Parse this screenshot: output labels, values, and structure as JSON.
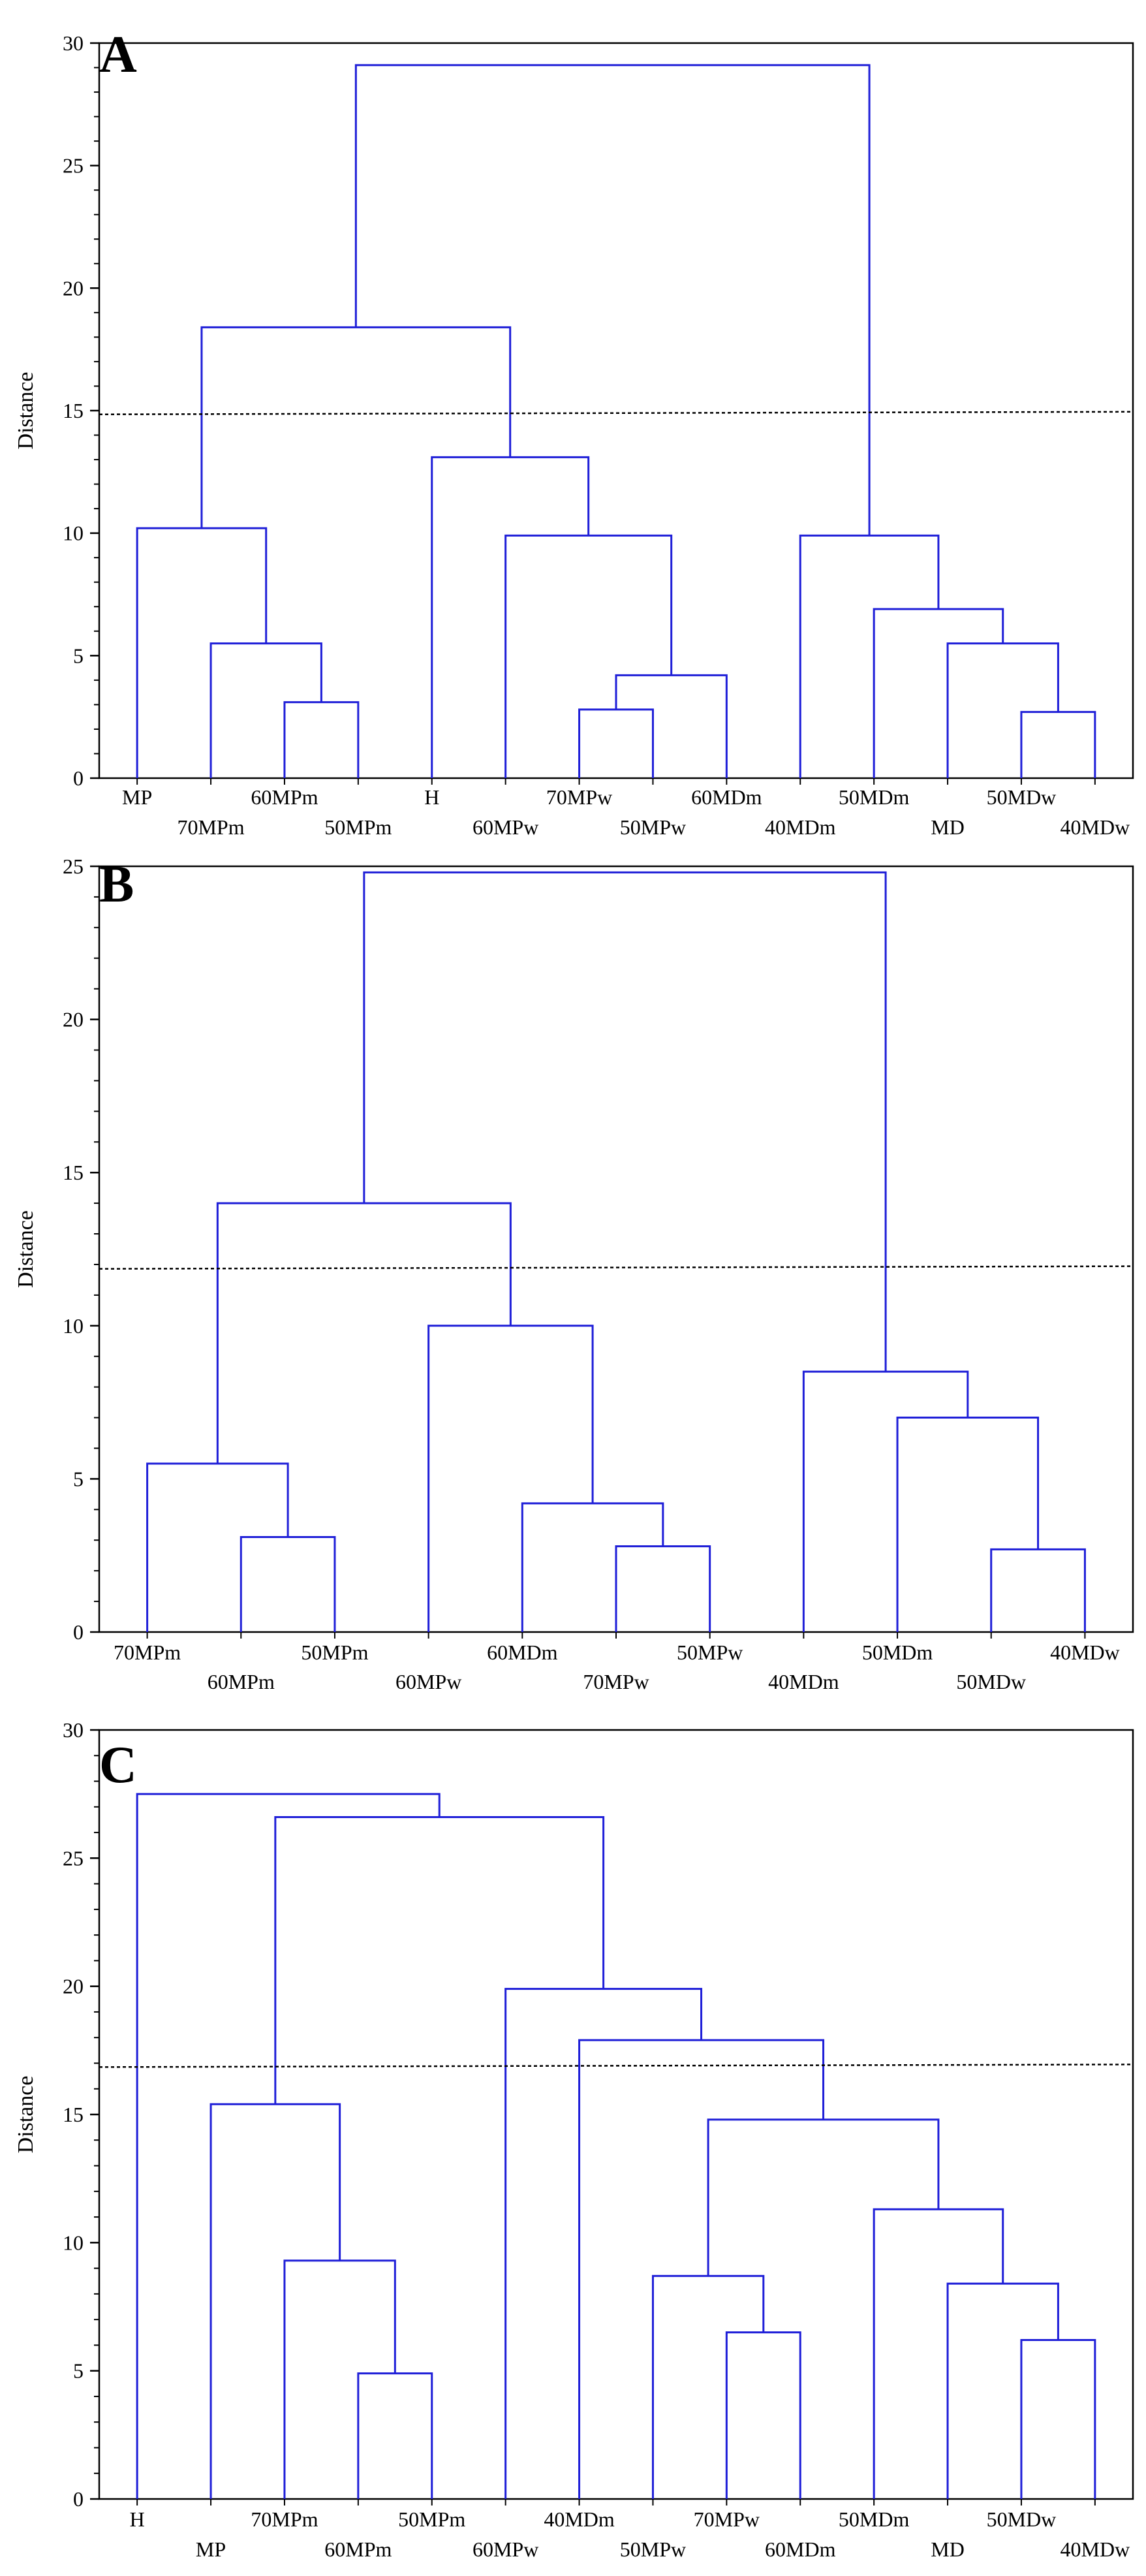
{
  "chart_data": [
    {
      "type": "dendrogram",
      "panel": "A",
      "ylabel": "Distance",
      "ylim": [
        0,
        30
      ],
      "yticks": [
        "0",
        "5",
        "10",
        "15",
        "20",
        "25",
        "30"
      ],
      "cut_height": 14.9,
      "leaves": [
        "MP",
        "70MPm",
        "60MPm",
        "50MPm",
        "H",
        "60MPw",
        "70MPw",
        "50MPw",
        "60MDm",
        "40MDm",
        "50MDm",
        "MD",
        "50MDw",
        "40MDw"
      ],
      "merges": [
        [
          3,
          4,
          3.1
        ],
        [
          2,
          15,
          5.5
        ],
        [
          1,
          16,
          10.2
        ],
        [
          7,
          8,
          2.8
        ],
        [
          18,
          9,
          4.2
        ],
        [
          6,
          19,
          9.9
        ],
        [
          5,
          20,
          13.1
        ],
        [
          17,
          21,
          18.4
        ],
        [
          13,
          14,
          2.7
        ],
        [
          12,
          23,
          5.5
        ],
        [
          11,
          24,
          6.9
        ],
        [
          10,
          25,
          9.9
        ],
        [
          22,
          26,
          29.1
        ]
      ]
    },
    {
      "type": "dendrogram",
      "panel": "B",
      "ylabel": "Distance",
      "ylim": [
        0,
        25
      ],
      "yticks": [
        "0",
        "5",
        "10",
        "15",
        "20",
        "25"
      ],
      "cut_height": 11.9,
      "leaves": [
        "70MPm",
        "60MPm",
        "50MPm",
        "60MPw",
        "60MDm",
        "70MPw",
        "50MPw",
        "40MDm",
        "50MDm",
        "50MDw",
        "40MDw"
      ],
      "merges": [
        [
          2,
          3,
          3.1
        ],
        [
          1,
          12,
          5.5
        ],
        [
          6,
          7,
          2.8
        ],
        [
          5,
          14,
          4.2
        ],
        [
          4,
          15,
          10.0
        ],
        [
          13,
          16,
          14.0
        ],
        [
          10,
          11,
          2.7
        ],
        [
          9,
          18,
          7.0
        ],
        [
          8,
          19,
          8.5
        ],
        [
          17,
          20,
          24.8
        ]
      ]
    },
    {
      "type": "dendrogram",
      "panel": "C",
      "ylabel": "Distance",
      "ylim": [
        0,
        30
      ],
      "yticks": [
        "0",
        "5",
        "10",
        "15",
        "20",
        "25",
        "30"
      ],
      "cut_height": 16.9,
      "leaves": [
        "H",
        "MP",
        "70MPm",
        "60MPm",
        "50MPm",
        "60MPw",
        "40MDm",
        "50MPw",
        "70MPw",
        "60MDm",
        "50MDm",
        "MD",
        "50MDw",
        "40MDw"
      ],
      "merges": [
        [
          4,
          5,
          4.9
        ],
        [
          3,
          15,
          9.3
        ],
        [
          2,
          16,
          15.4
        ],
        [
          13,
          14,
          6.2
        ],
        [
          12,
          18,
          8.4
        ],
        [
          11,
          19,
          11.3
        ],
        [
          9,
          10,
          6.5
        ],
        [
          8,
          21,
          8.7
        ],
        [
          22,
          20,
          14.8
        ],
        [
          7,
          23,
          17.9
        ],
        [
          6,
          24,
          19.9
        ],
        [
          17,
          25,
          26.6
        ],
        [
          1,
          26,
          27.5
        ]
      ]
    }
  ]
}
